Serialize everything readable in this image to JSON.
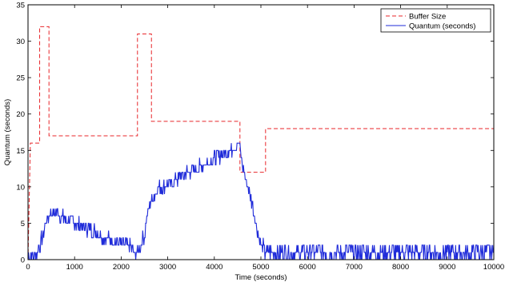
{
  "chart_data": {
    "type": "line",
    "xlabel": "Time (seconds)",
    "ylabel": "Quantum (seconds)",
    "xlim": [
      0,
      10000
    ],
    "ylim": [
      0,
      35
    ],
    "xticks": [
      0,
      1000,
      2000,
      3000,
      4000,
      5000,
      6000,
      7000,
      8000,
      9000,
      10000
    ],
    "yticks": [
      0,
      5,
      10,
      15,
      20,
      25,
      30,
      35
    ],
    "grid": false,
    "legend_position": "top-right",
    "series": [
      {
        "name": "Buffer Size",
        "style": "dashed-step",
        "color": "#e8262a",
        "x": [
          0,
          50,
          50,
          250,
          250,
          450,
          450,
          2350,
          2350,
          2650,
          2650,
          4550,
          4550,
          5100,
          5100,
          10000
        ],
        "y": [
          0,
          16,
          16,
          16,
          32,
          32,
          17,
          17,
          31,
          31,
          19,
          19,
          12,
          12,
          18,
          18
        ]
      },
      {
        "name": "Quantum (seconds)",
        "style": "noisy-line",
        "color": "#1f2bd9",
        "x": [
          0,
          100,
          200,
          300,
          400,
          500,
          600,
          700,
          800,
          1000,
          1200,
          1400,
          1600,
          1800,
          2000,
          2200,
          2300,
          2400,
          2500,
          2600,
          2800,
          3000,
          3200,
          3400,
          3600,
          3800,
          4000,
          4200,
          4400,
          4500,
          4550,
          4600,
          4700,
          4800,
          4900,
          5000,
          5100,
          5200,
          6000,
          7000,
          8000,
          9000,
          10000
        ],
        "y": [
          0.5,
          0.5,
          1,
          3,
          5.5,
          6.5,
          6.5,
          6,
          5.5,
          5,
          4.5,
          4,
          3.2,
          2.8,
          2.2,
          1.8,
          0.5,
          1.5,
          3.5,
          7.5,
          9.8,
          10.3,
          11,
          12,
          12.5,
          13.2,
          13.8,
          14.5,
          15.3,
          16,
          15.5,
          13,
          10.5,
          8,
          5,
          2,
          1,
          1,
          1,
          1,
          1,
          1,
          1
        ]
      }
    ]
  }
}
